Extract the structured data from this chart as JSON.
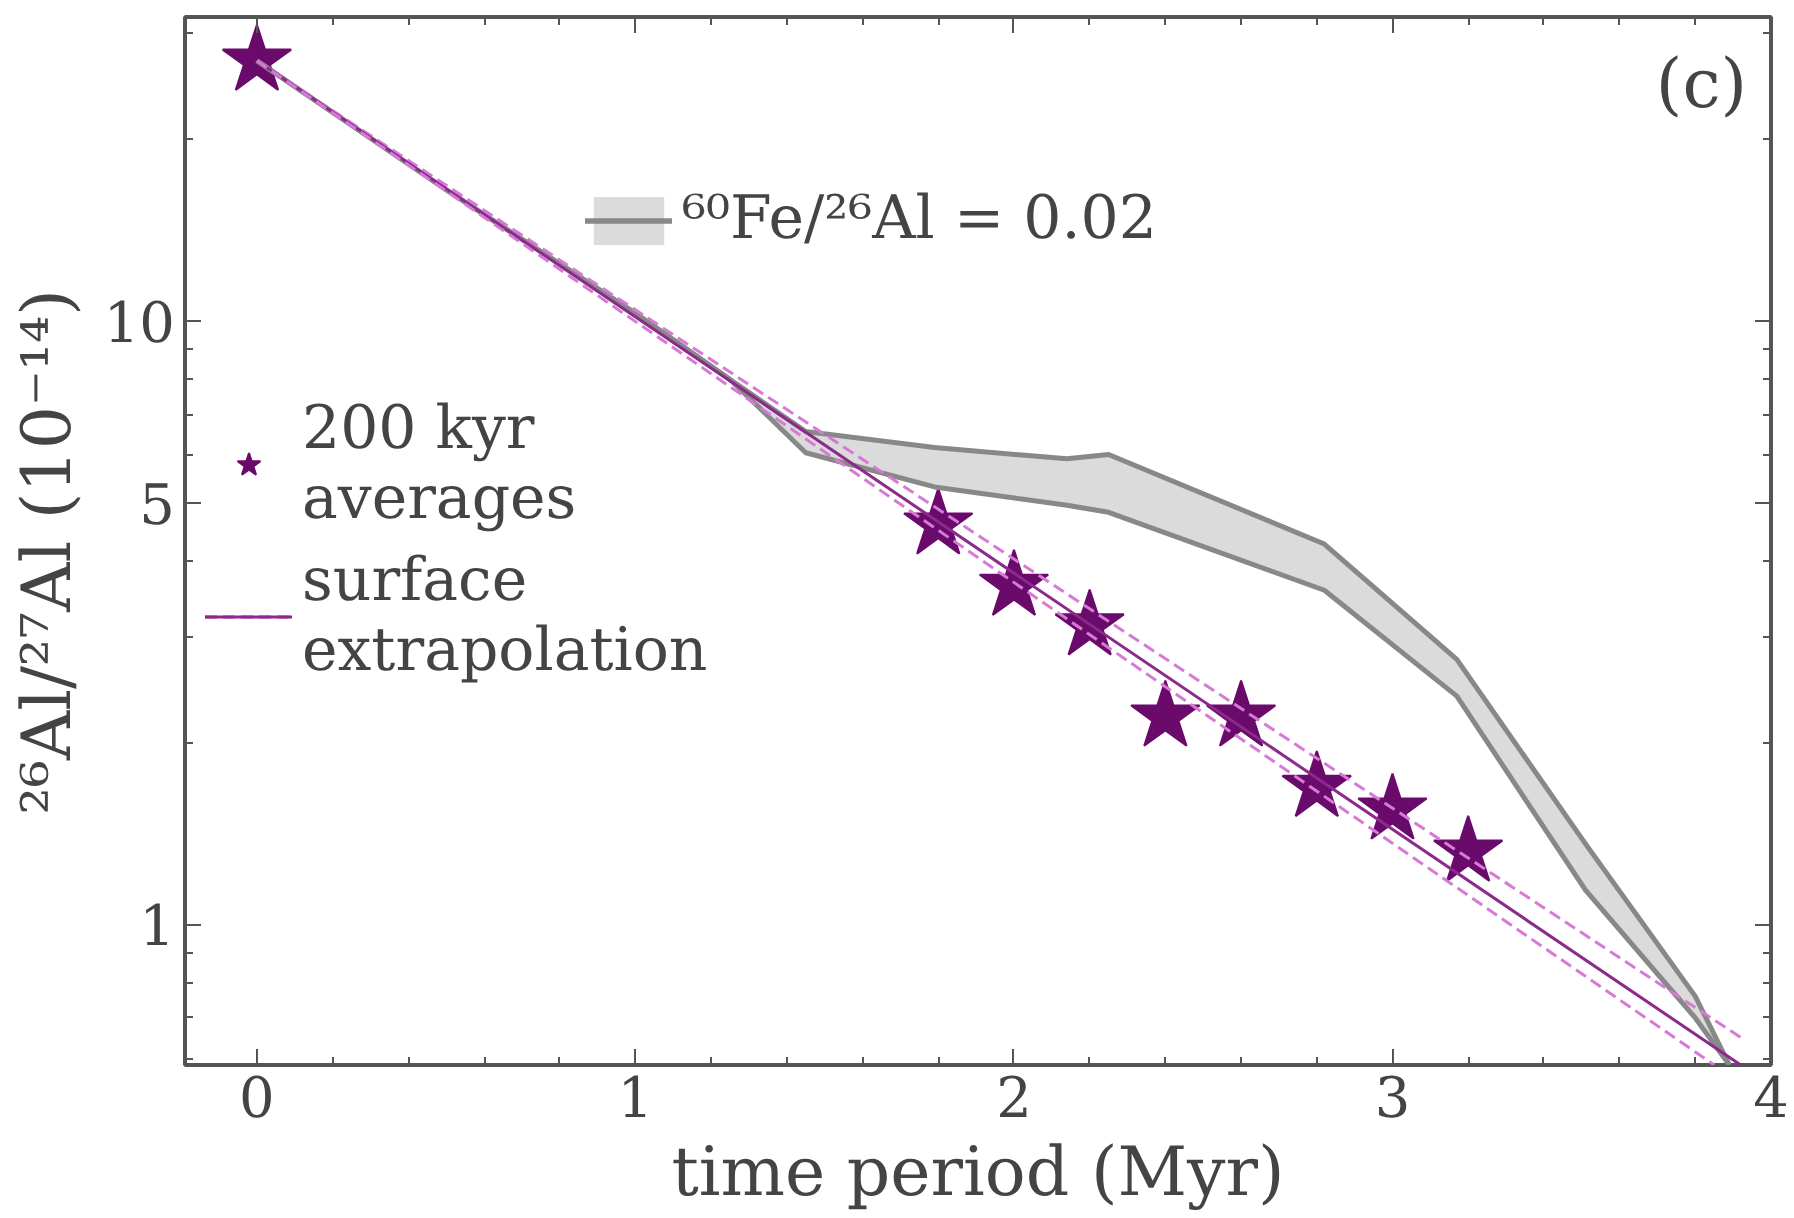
{
  "chart_data": {
    "type": "line",
    "xlabel": "time period (Myr)",
    "ylabel": "²⁶Al/²⁷Al  (10⁻¹⁴)",
    "log": "y",
    "xlim": [
      -0.19,
      4.0
    ],
    "ylim": [
      0.585,
      31.9
    ],
    "xticks": [
      0,
      1,
      2,
      3,
      4
    ],
    "yticks": [
      1,
      5,
      10
    ],
    "grid": false,
    "legend": "left",
    "annotations": [
      "(c)"
    ],
    "series": [
      {
        "name": "⁶⁰Fe/²⁶Al = 0.02",
        "color": "#888888",
        "x": [
          0,
          0.5,
          1.0,
          1.25,
          1.45,
          1.79,
          2.14,
          2.25,
          2.82,
          3.17,
          3.51,
          3.8,
          3.89
        ],
        "values": [
          27,
          16.5,
          10.3,
          8.0,
          6.56,
          6.17,
          5.91,
          6.01,
          4.27,
          2.75,
          1.36,
          0.76,
          0.585
        ],
        "lower": [
          27,
          16.5,
          10.3,
          8.0,
          6.05,
          5.31,
          4.95,
          4.82,
          3.58,
          2.39,
          1.14,
          0.7,
          0.585
        ],
        "upper": [
          27,
          16.5,
          10.3,
          8.0,
          6.56,
          6.17,
          5.91,
          6.01,
          4.27,
          2.75,
          1.36,
          0.76,
          0.585
        ]
      },
      {
        "name": "200 kyr\naverages",
        "type": "scatter",
        "marker": "star",
        "color": "#6a0a6a",
        "x": [
          0,
          1.8,
          2.0,
          2.2,
          2.4,
          2.6,
          2.8,
          3.0,
          3.2
        ],
        "values": [
          27,
          4.6,
          3.64,
          3.13,
          2.21,
          2.21,
          1.69,
          1.55,
          1.32
        ]
      },
      {
        "color": "#d77ad7",
        "line_style": "dashed",
        "x": [
          0,
          3.92
        ],
        "values": [
          27,
          0.65
        ]
      },
      {
        "name": "surface\nextrapolation",
        "color": "#8b2a8b",
        "line_style": "solid",
        "x": [
          0,
          3.92
        ],
        "values": [
          27,
          0.585
        ]
      },
      {
        "color": "#d77ad7",
        "line_style": "dashed",
        "x": [
          0,
          3.85
        ],
        "values": [
          27,
          0.585
        ]
      }
    ]
  }
}
